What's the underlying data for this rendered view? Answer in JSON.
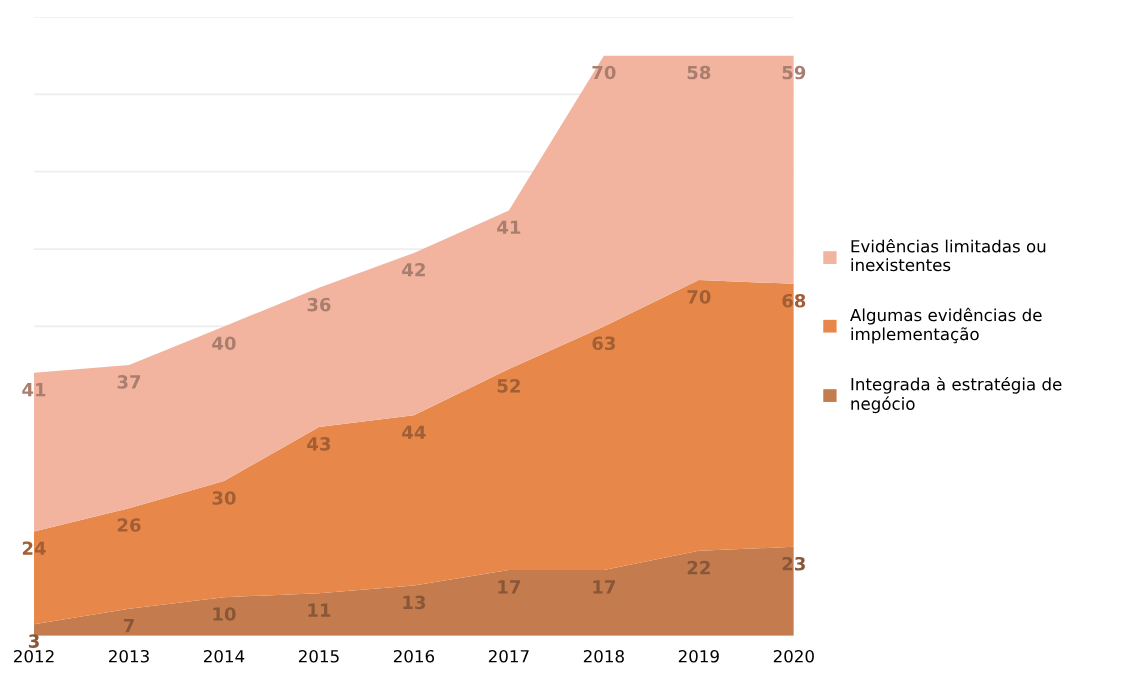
{
  "chart_data": {
    "type": "area",
    "stacked": true,
    "categories": [
      "2012",
      "2013",
      "2014",
      "2015",
      "2016",
      "2017",
      "2018",
      "2019",
      "2020"
    ],
    "series": [
      {
        "name": "Integrada à estratégia de negócio",
        "color": "#c47c4f",
        "values": [
          3,
          7,
          10,
          11,
          13,
          17,
          17,
          22,
          23
        ]
      },
      {
        "name": "Algumas evidências de implementação",
        "color": "#e8874a",
        "values": [
          24,
          26,
          30,
          43,
          44,
          52,
          63,
          70,
          68
        ]
      },
      {
        "name": "Evidências limitadas ou inexistentes",
        "color": "#f2b49e",
        "values": [
          41,
          37,
          40,
          36,
          42,
          41,
          70,
          58,
          59
        ]
      }
    ],
    "ylim": [
      0,
      160
    ],
    "yticks": [
      {
        "value": 0,
        "label": null
      },
      {
        "value": 80,
        "label": null
      },
      {
        "value": 100,
        "label": null
      },
      {
        "value": 120,
        "label": null
      },
      {
        "value": 140,
        "label": null
      },
      {
        "value": 160,
        "label": null
      }
    ],
    "tick_labels": "x",
    "grid": "y",
    "legend": "right",
    "data_labels": true
  }
}
